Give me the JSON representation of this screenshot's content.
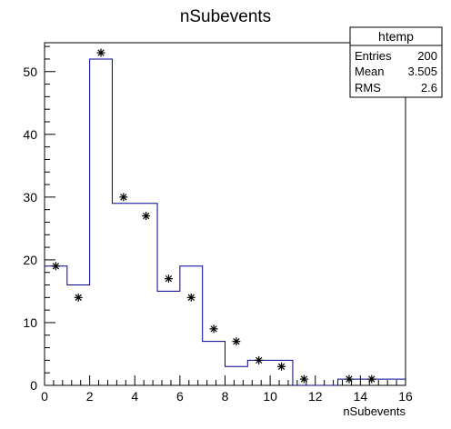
{
  "chart_data": {
    "type": "histogram",
    "title": "nSubevents",
    "xlabel": "nSubevents",
    "ylabel": "",
    "xlim": [
      0,
      16
    ],
    "ylim": [
      0,
      54.6
    ],
    "x_ticks": [
      0,
      2,
      4,
      6,
      8,
      10,
      12,
      14,
      16
    ],
    "y_ticks": [
      0,
      10,
      20,
      30,
      40,
      50
    ],
    "bin_edges": [
      0,
      1,
      2,
      3,
      4,
      5,
      6,
      7,
      8,
      9,
      10,
      11,
      12,
      13,
      14,
      15,
      16
    ],
    "series": [
      {
        "kind": "step",
        "color": "#000099",
        "values": [
          19,
          16,
          52,
          29,
          29,
          15,
          19,
          7,
          3,
          4,
          4,
          0,
          0,
          1,
          1,
          1
        ]
      },
      {
        "kind": "markers",
        "marker": "asterisk",
        "color": "#000000",
        "points": [
          {
            "x": 0.5,
            "y": 19
          },
          {
            "x": 1.5,
            "y": 14
          },
          {
            "x": 2.5,
            "y": 53
          },
          {
            "x": 3.5,
            "y": 30
          },
          {
            "x": 4.5,
            "y": 27
          },
          {
            "x": 5.5,
            "y": 17
          },
          {
            "x": 6.5,
            "y": 14
          },
          {
            "x": 7.5,
            "y": 9
          },
          {
            "x": 8.5,
            "y": 7
          },
          {
            "x": 9.5,
            "y": 4
          },
          {
            "x": 10.5,
            "y": 3
          },
          {
            "x": 11.5,
            "y": 1
          },
          {
            "x": 13.5,
            "y": 1
          },
          {
            "x": 14.5,
            "y": 1
          }
        ]
      }
    ],
    "stats_box": {
      "name": "htemp",
      "rows": [
        {
          "label": "Entries",
          "value": "200"
        },
        {
          "label": "Mean",
          "value": "3.505"
        },
        {
          "label": "RMS",
          "value": "2.6"
        }
      ]
    },
    "grid": false,
    "legend": "top-right"
  }
}
